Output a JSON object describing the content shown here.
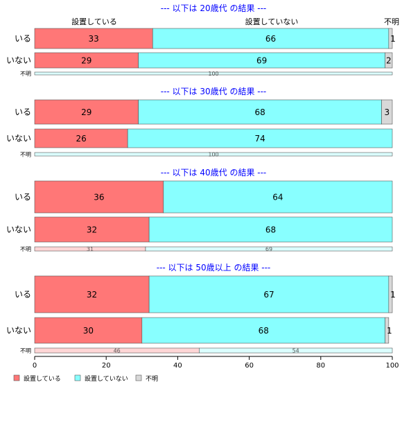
{
  "chart_data": {
    "type": "bar",
    "orientation": "horizontal",
    "stacked": true,
    "column_headers": [
      "設置している",
      "設置していない",
      "不明"
    ],
    "series": [
      {
        "name": "設置している",
        "color": "#FF7777"
      },
      {
        "name": "設置していない",
        "color": "#88FFFF"
      },
      {
        "name": "不明",
        "color": "#D8D8D8"
      }
    ],
    "xlim": [
      0,
      100
    ],
    "xticks": [
      "0",
      "20",
      "40",
      "60",
      "80",
      "100"
    ],
    "legend_position": "bottom-left",
    "grid": false,
    "panels": [
      {
        "title": "--- 以下は 20歳代 の結果 ---",
        "rows": [
          {
            "label": "いる",
            "values": [
              33,
              66,
              1
            ]
          },
          {
            "label": "いない",
            "values": [
              29,
              69,
              2
            ]
          },
          {
            "label": "不明",
            "values": [
              0,
              100,
              0
            ]
          }
        ]
      },
      {
        "title": "--- 以下は 30歳代 の結果 ---",
        "rows": [
          {
            "label": "いる",
            "values": [
              29,
              68,
              3
            ]
          },
          {
            "label": "いない",
            "values": [
              26,
              74,
              0
            ]
          },
          {
            "label": "不明",
            "values": [
              0,
              100,
              0
            ]
          }
        ]
      },
      {
        "title": "--- 以下は 40歳代 の結果 ---",
        "rows": [
          {
            "label": "いる",
            "values": [
              36,
              64,
              0
            ]
          },
          {
            "label": "いない",
            "values": [
              32,
              68,
              0
            ]
          },
          {
            "label": "不明",
            "values": [
              31,
              69,
              0
            ]
          }
        ]
      },
      {
        "title": "--- 以下は 50歳以上 の結果 ---",
        "rows": [
          {
            "label": "いる",
            "values": [
              32,
              67,
              1
            ]
          },
          {
            "label": "いない",
            "values": [
              30,
              68,
              1
            ]
          },
          {
            "label": "不明",
            "values": [
              46,
              54,
              0
            ]
          }
        ]
      }
    ]
  }
}
